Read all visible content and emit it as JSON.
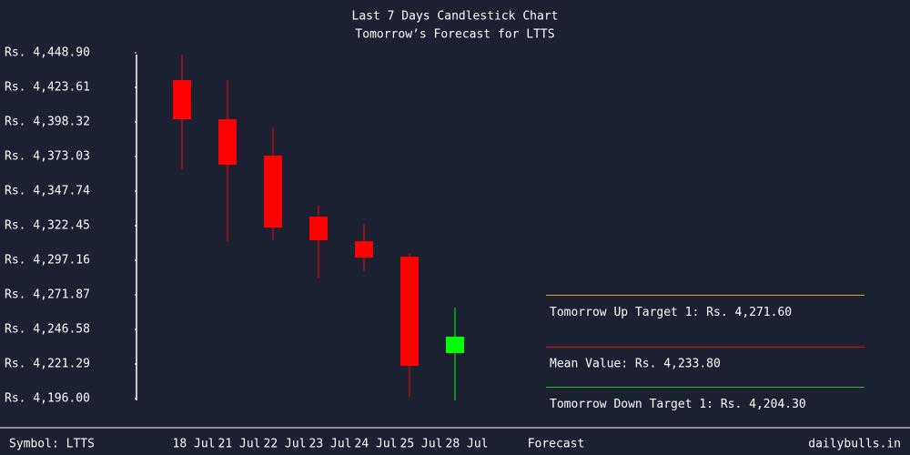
{
  "chart_data": {
    "type": "candlestick",
    "title": "Last 7 Days Candlestick Chart",
    "subtitle": "Tomorrow’s Forecast for LTTS",
    "categories": [
      "18 Jul",
      "21 Jul",
      "22 Jul",
      "23 Jul",
      "24 Jul",
      "25 Jul",
      "28 Jul"
    ],
    "open": [
      4428.9,
      4400.3,
      4373.7,
      4329.1,
      4311.1,
      4299.8,
      4229.3
    ],
    "high": [
      4447.6,
      4428.9,
      4394.3,
      4337.1,
      4323.8,
      4302.5,
      4262.6
    ],
    "low": [
      4363.7,
      4311.1,
      4311.8,
      4283.9,
      4289.2,
      4197.3,
      4194.7
    ],
    "close": [
      4400.3,
      4367.0,
      4321.1,
      4311.8,
      4299.2,
      4220.0,
      4241.3
    ],
    "up_color": "#00ff00",
    "down_color": "#ff0000",
    "ylim": [
      4196.0,
      4448.9
    ],
    "yticks": [
      {
        "value": 4448.9,
        "label": "Rs. 4,448.90"
      },
      {
        "value": 4423.61,
        "label": "Rs. 4,423.61"
      },
      {
        "value": 4398.32,
        "label": "Rs. 4,398.32"
      },
      {
        "value": 4373.03,
        "label": "Rs. 4,373.03"
      },
      {
        "value": 4347.74,
        "label": "Rs. 4,347.74"
      },
      {
        "value": 4322.45,
        "label": "Rs. 4,322.45"
      },
      {
        "value": 4297.16,
        "label": "Rs. 4,297.16"
      },
      {
        "value": 4271.87,
        "label": "Rs. 4,271.87"
      },
      {
        "value": 4246.58,
        "label": "Rs. 4,246.58"
      },
      {
        "value": 4221.29,
        "label": "Rs. 4,221.29"
      },
      {
        "value": 4196.0,
        "label": "Rs. 4,196.00"
      }
    ],
    "forecast": [
      {
        "label": "Tomorrow Up Target 1: Rs. 4,271.60",
        "value": 4271.6,
        "color": "#e8a33c"
      },
      {
        "label": "Mean Value: Rs. 4,233.80",
        "value": 4233.8,
        "color": "#e01010"
      },
      {
        "label": "Tomorrow Down Target 1: Rs. 4,204.30",
        "value": 4204.3,
        "color": "#20c020"
      }
    ],
    "forecast_label": "Forecast",
    "symbol": "Symbol: LTTS",
    "source": "dailybulls.in"
  }
}
